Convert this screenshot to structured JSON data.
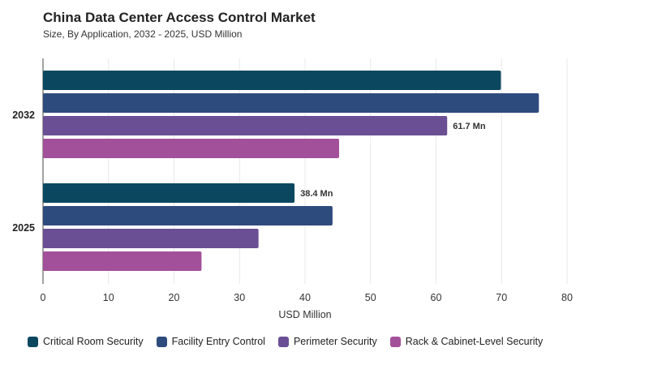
{
  "chart_data": {
    "type": "bar",
    "orientation": "horizontal",
    "title": "China Data Center Access Control Market",
    "subtitle": "Size, By Application, 2032 - 2025, USD Million",
    "xlabel": "USD Million",
    "ylabel": "",
    "xlim": [
      0,
      80
    ],
    "xticks": [
      "0",
      "10",
      "20",
      "30",
      "40",
      "50",
      "60",
      "70",
      "80"
    ],
    "categories": [
      "2032",
      "2025"
    ],
    "series": [
      {
        "name": "Critical Room Security",
        "color": "#0b4860",
        "values": [
          69.9,
          38.4
        ]
      },
      {
        "name": "Facility Entry Control",
        "color": "#2e4b7d",
        "values": [
          75.7,
          44.2
        ]
      },
      {
        "name": "Perimeter Security",
        "color": "#6a4f94",
        "values": [
          61.7,
          32.9
        ]
      },
      {
        "name": "Rack & Cabinet-Level Security",
        "color": "#a3509a",
        "values": [
          45.2,
          24.2
        ]
      }
    ],
    "data_labels": [
      {
        "category": "2032",
        "series": "Perimeter Security",
        "text": "61.7 Mn"
      },
      {
        "category": "2025",
        "series": "Critical Room Security",
        "text": "38.4 Mn"
      }
    ],
    "grid": true,
    "legend_position": "bottom"
  }
}
